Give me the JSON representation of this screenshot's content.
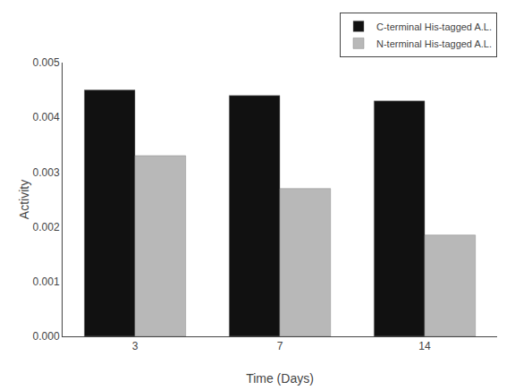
{
  "chart_data": {
    "type": "bar",
    "categories": [
      "3",
      "7",
      "14"
    ],
    "series": [
      {
        "name": "C-terminal His-tagged A.L.",
        "color": "#111111",
        "values": [
          0.0045,
          0.0044,
          0.0043
        ]
      },
      {
        "name": "N-terminal His-tagged A.L.",
        "color": "#b8b8b8",
        "values": [
          0.0033,
          0.0027,
          0.00185
        ]
      }
    ],
    "xlabel": "Time (Days)",
    "ylabel": "Activity",
    "ylim": [
      0,
      0.005
    ],
    "yticks": [
      {
        "value": 0,
        "label": "0.000"
      },
      0.001,
      0.002,
      0.003,
      0.004,
      0.005
    ],
    "grid": false,
    "legend": "upper right"
  }
}
